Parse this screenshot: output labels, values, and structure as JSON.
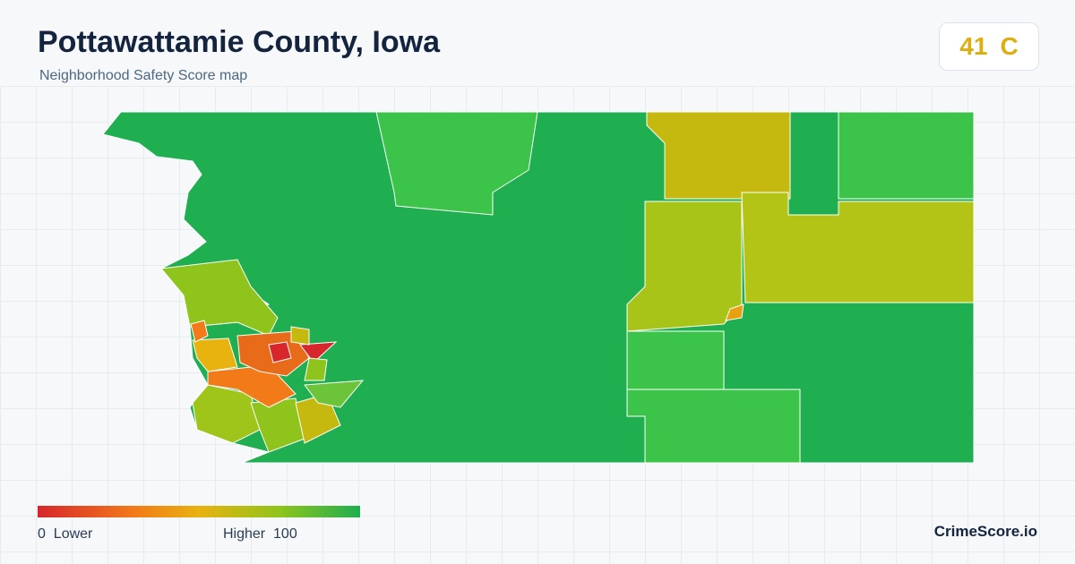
{
  "header": {
    "title": "Pottawattamie County, Iowa",
    "subtitle": "Neighborhood Safety Score map"
  },
  "score": {
    "value": 41,
    "grade": "C"
  },
  "legend": {
    "min": 0,
    "min_label": "Lower",
    "max_label": "Higher",
    "max": 100
  },
  "footer": {
    "brand": "CrimeScore.io"
  }
}
